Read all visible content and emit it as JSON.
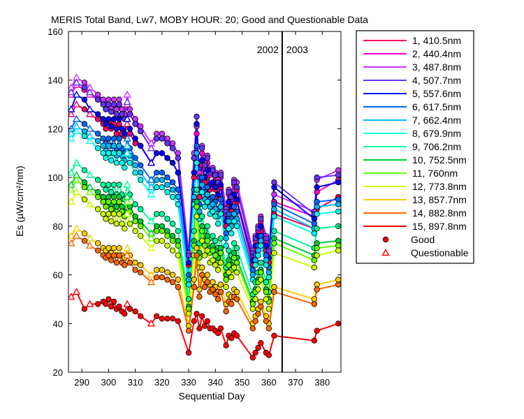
{
  "chart_data": {
    "type": "line",
    "title": "MERIS Total Band,  Lw7, MOBY HOUR: 20;  Good and Questionable Data",
    "xlabel": "Sequential Day",
    "ylabel": "Es (µW/cm²/nm)",
    "xlim": [
      285,
      387
    ],
    "ylim": [
      20,
      160
    ],
    "xticks": [
      290,
      300,
      310,
      320,
      330,
      340,
      350,
      360,
      370,
      380
    ],
    "yticks": [
      20,
      40,
      60,
      80,
      100,
      120,
      140,
      160
    ],
    "grid": false,
    "legend_position": "right",
    "year_divider": {
      "x": 365,
      "left_label": "2002",
      "right_label": "2003"
    },
    "marker_legend": [
      {
        "label": "Good",
        "marker": "filled-circle"
      },
      {
        "label": "Questionable",
        "marker": "open-triangle"
      }
    ],
    "x": [
      286,
      288,
      291,
      293,
      296,
      298,
      299,
      300,
      301,
      302,
      303,
      304,
      305,
      306,
      307,
      308,
      310,
      312,
      316,
      318,
      320,
      322,
      324,
      326,
      330,
      332,
      333,
      334,
      335,
      336,
      337,
      338,
      339,
      340,
      341,
      342,
      344,
      345,
      346,
      347,
      348,
      354,
      355,
      356,
      357,
      359,
      360,
      362,
      377,
      378,
      386
    ],
    "series": [
      {
        "name": "1, 410.5nm",
        "color": "#ff0066",
        "values": [
          126,
          130,
          128,
          126,
          124,
          122,
          120,
          123,
          120,
          122,
          118,
          122,
          118,
          117,
          122,
          118,
          114,
          113,
          106,
          110,
          110,
          108,
          106,
          102,
          64,
          100,
          110,
          92,
          105,
          98,
          100,
          95,
          96,
          95,
          92,
          96,
          80,
          88,
          86,
          92,
          90,
          64,
          70,
          74,
          78,
          70,
          65,
          85,
          79,
          87,
          92
        ]
      },
      {
        "name": "2, 440.4nm",
        "color": "#ff00cc",
        "values": [
          134,
          138,
          136,
          134,
          132,
          130,
          128,
          130,
          127,
          130,
          126,
          130,
          126,
          124,
          130,
          126,
          122,
          119,
          112,
          116,
          116,
          114,
          112,
          108,
          68,
          108,
          118,
          100,
          110,
          104,
          106,
          101,
          102,
          100,
          97,
          100,
          85,
          93,
          91,
          97,
          95,
          68,
          74,
          78,
          82,
          74,
          69,
          90,
          84,
          94,
          99
        ]
      },
      {
        "name": "3, 487.8nm",
        "color": "#cc33ff",
        "values": [
          137,
          141,
          139,
          137,
          134,
          132,
          130,
          132,
          129,
          132,
          128,
          132,
          128,
          126,
          134,
          128,
          124,
          121,
          114,
          118,
          118,
          116,
          114,
          110,
          69,
          110,
          121,
          102,
          113,
          106,
          109,
          103,
          104,
          102,
          99,
          102,
          87,
          95,
          93,
          99,
          98,
          70,
          76,
          80,
          84,
          76,
          71,
          93,
          86,
          99,
          103
        ]
      },
      {
        "name": "4, 507.7nm",
        "color": "#6633ff",
        "values": [
          135,
          139,
          137,
          135,
          132,
          130,
          128,
          130,
          127,
          130,
          126,
          130,
          126,
          124,
          131,
          126,
          122,
          119,
          112,
          116,
          116,
          114,
          112,
          108,
          68,
          108,
          125,
          100,
          112,
          105,
          108,
          102,
          103,
          101,
          98,
          101,
          86,
          94,
          92,
          98,
          96,
          69,
          75,
          79,
          83,
          75,
          70,
          98,
          85,
          100,
          101
        ]
      },
      {
        "name": "5, 557.6nm",
        "color": "#0000ff",
        "values": [
          128,
          134,
          132,
          128,
          126,
          124,
          122,
          124,
          121,
          124,
          120,
          124,
          120,
          118,
          124,
          120,
          116,
          113,
          106,
          110,
          110,
          108,
          106,
          102,
          65,
          102,
          122,
          95,
          107,
          100,
          103,
          97,
          98,
          96,
          93,
          97,
          82,
          90,
          88,
          93,
          91,
          66,
          72,
          76,
          80,
          72,
          67,
          96,
          83,
          96,
          98
        ]
      },
      {
        "name": "6, 617.5nm",
        "color": "#0066ff",
        "values": [
          120,
          124,
          122,
          120,
          118,
          116,
          114,
          116,
          113,
          116,
          112,
          116,
          112,
          110,
          116,
          112,
          108,
          105,
          99,
          102,
          102,
          100,
          98,
          95,
          60,
          95,
          113,
          89,
          100,
          94,
          96,
          91,
          92,
          90,
          87,
          91,
          77,
          85,
          83,
          88,
          86,
          62,
          68,
          72,
          76,
          68,
          63,
          89,
          81,
          90,
          91
        ]
      },
      {
        "name": "7, 662.4nm",
        "color": "#00bbff",
        "values": [
          118,
          121,
          119,
          117,
          115,
          113,
          111,
          113,
          110,
          113,
          109,
          113,
          109,
          107,
          113,
          109,
          105,
          102,
          96,
          99,
          99,
          97,
          95,
          92,
          58,
          92,
          110,
          86,
          97,
          91,
          93,
          88,
          89,
          87,
          84,
          88,
          75,
          82,
          80,
          85,
          83,
          60,
          66,
          70,
          74,
          66,
          61,
          87,
          79,
          88,
          89
        ]
      },
      {
        "name": "8, 679.9nm",
        "color": "#00ffee",
        "values": [
          116,
          119,
          117,
          115,
          112,
          110,
          108,
          110,
          107,
          110,
          106,
          110,
          106,
          104,
          110,
          106,
          102,
          99,
          93,
          96,
          96,
          94,
          92,
          89,
          56,
          89,
          106,
          83,
          94,
          88,
          90,
          85,
          86,
          84,
          81,
          85,
          72,
          79,
          77,
          82,
          80,
          58,
          64,
          68,
          72,
          64,
          59,
          84,
          77,
          85,
          86
        ]
      },
      {
        "name": "9, 706.2nm",
        "color": "#00ff99",
        "values": [
          102,
          106,
          103,
          101,
          99,
          97,
          95,
          97,
          94,
          97,
          93,
          97,
          93,
          91,
          97,
          93,
          89,
          87,
          82,
          85,
          85,
          83,
          81,
          78,
          50,
          78,
          95,
          73,
          84,
          78,
          80,
          75,
          76,
          74,
          71,
          75,
          63,
          70,
          68,
          73,
          71,
          52,
          57,
          61,
          65,
          57,
          53,
          78,
          71,
          79,
          80
        ]
      },
      {
        "name": "10, 752.5nm",
        "color": "#00cc33",
        "values": [
          97,
          101,
          98,
          96,
          94,
          92,
          90,
          92,
          89,
          92,
          88,
          92,
          88,
          86,
          92,
          88,
          84,
          82,
          77,
          80,
          80,
          78,
          76,
          74,
          47,
          74,
          90,
          69,
          80,
          74,
          76,
          71,
          72,
          70,
          67,
          71,
          60,
          66,
          64,
          69,
          67,
          49,
          54,
          58,
          62,
          54,
          50,
          75,
          68,
          73,
          74
        ]
      },
      {
        "name": "11,  760nm",
        "color": "#66ff00",
        "values": [
          95,
          99,
          96,
          94,
          92,
          90,
          88,
          90,
          87,
          90,
          86,
          90,
          86,
          84,
          90,
          86,
          82,
          80,
          75,
          78,
          78,
          76,
          74,
          72,
          46,
          72,
          88,
          67,
          78,
          72,
          74,
          69,
          70,
          68,
          65,
          69,
          58,
          64,
          62,
          67,
          65,
          48,
          53,
          57,
          61,
          53,
          49,
          73,
          66,
          71,
          72
        ]
      },
      {
        "name": "12, 773.8nm",
        "color": "#ccff00",
        "values": [
          90,
          94,
          91,
          89,
          87,
          85,
          83,
          85,
          82,
          85,
          81,
          85,
          81,
          79,
          85,
          81,
          78,
          76,
          71,
          74,
          74,
          72,
          70,
          68,
          44,
          68,
          84,
          63,
          74,
          68,
          70,
          65,
          66,
          64,
          62,
          65,
          55,
          61,
          59,
          63,
          61,
          46,
          50,
          54,
          58,
          50,
          46,
          69,
          63,
          68,
          70
        ]
      },
      {
        "name": "13, 857.7nm",
        "color": "#ffcc00",
        "values": [
          76,
          79,
          77,
          75,
          73,
          71,
          70,
          71,
          69,
          71,
          68,
          71,
          68,
          67,
          71,
          68,
          65,
          64,
          60,
          62,
          62,
          61,
          60,
          58,
          39,
          58,
          71,
          54,
          63,
          58,
          60,
          56,
          57,
          55,
          53,
          56,
          48,
          52,
          51,
          54,
          53,
          40,
          43,
          46,
          49,
          43,
          40,
          55,
          50,
          56,
          58
        ]
      },
      {
        "name": "14, 882.8nm",
        "color": "#ff6600",
        "values": [
          73,
          76,
          74,
          72,
          70,
          68,
          67,
          68,
          66,
          68,
          65,
          68,
          65,
          64,
          68,
          65,
          62,
          61,
          57,
          59,
          59,
          58,
          57,
          55,
          37,
          55,
          68,
          51,
          60,
          55,
          57,
          53,
          54,
          52,
          50,
          53,
          45,
          49,
          48,
          51,
          50,
          38,
          41,
          44,
          47,
          41,
          38,
          53,
          48,
          54,
          56
        ]
      },
      {
        "name": "15, 897.8nm",
        "color": "#ff0000",
        "values": [
          51,
          53,
          46,
          48,
          48,
          49,
          48,
          50,
          47,
          49,
          46,
          47,
          45,
          44,
          48,
          46,
          45,
          43,
          40,
          43,
          42,
          42,
          42,
          41,
          28,
          41,
          44,
          38,
          43,
          39,
          41,
          38,
          38,
          37,
          36,
          38,
          31,
          35,
          34,
          36,
          35,
          26,
          28,
          30,
          32,
          28,
          27,
          35,
          33,
          37,
          40
        ]
      }
    ],
    "questionable_x": [
      286,
      288,
      293,
      307,
      316
    ]
  }
}
